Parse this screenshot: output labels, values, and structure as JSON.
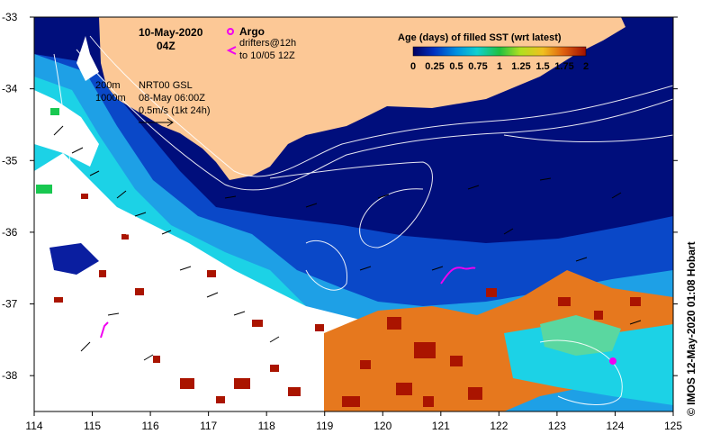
{
  "map": {
    "date": "10-May-2020",
    "hour": "04Z",
    "argo_label": "Argo",
    "drifters_line1": "drifters@12h",
    "drifters_line2": "to 10/05 12Z",
    "isobath_200": "200m",
    "isobath_1000": "1000m",
    "alt_line1": "NRT00 GSL",
    "alt_line2": "08-May 06:00Z",
    "alt_line3": "0.5m/s (1kt 24h)",
    "colorbar_title": "Age (days) of filled SST (wrt latest)",
    "colorbar_ticks": [
      "0",
      "0.25",
      "0.5",
      "0.75",
      "1",
      "1.25",
      "1.5",
      "1.75",
      "2"
    ],
    "credit": "© IMOS 12-May-2020 01:08 Hobart",
    "lon_ticks": [
      "114",
      "115",
      "116",
      "117",
      "118",
      "119",
      "120",
      "121",
      "122",
      "123",
      "124",
      "125"
    ],
    "lat_ticks": [
      "-33",
      "-34",
      "-35",
      "-36",
      "-37",
      "-38"
    ],
    "lon_range": [
      114,
      125
    ],
    "lat_range": [
      -38.5,
      -33
    ],
    "colors": {
      "land": "#fcc896",
      "deep": "#000e7c",
      "blue": "#0a48c8",
      "lightblue": "#1ea0e6",
      "cyan": "#1cd2e6",
      "green": "#18c850",
      "orange": "#e6781e",
      "darkred": "#aa1400",
      "magenta": "#f000f0"
    }
  }
}
